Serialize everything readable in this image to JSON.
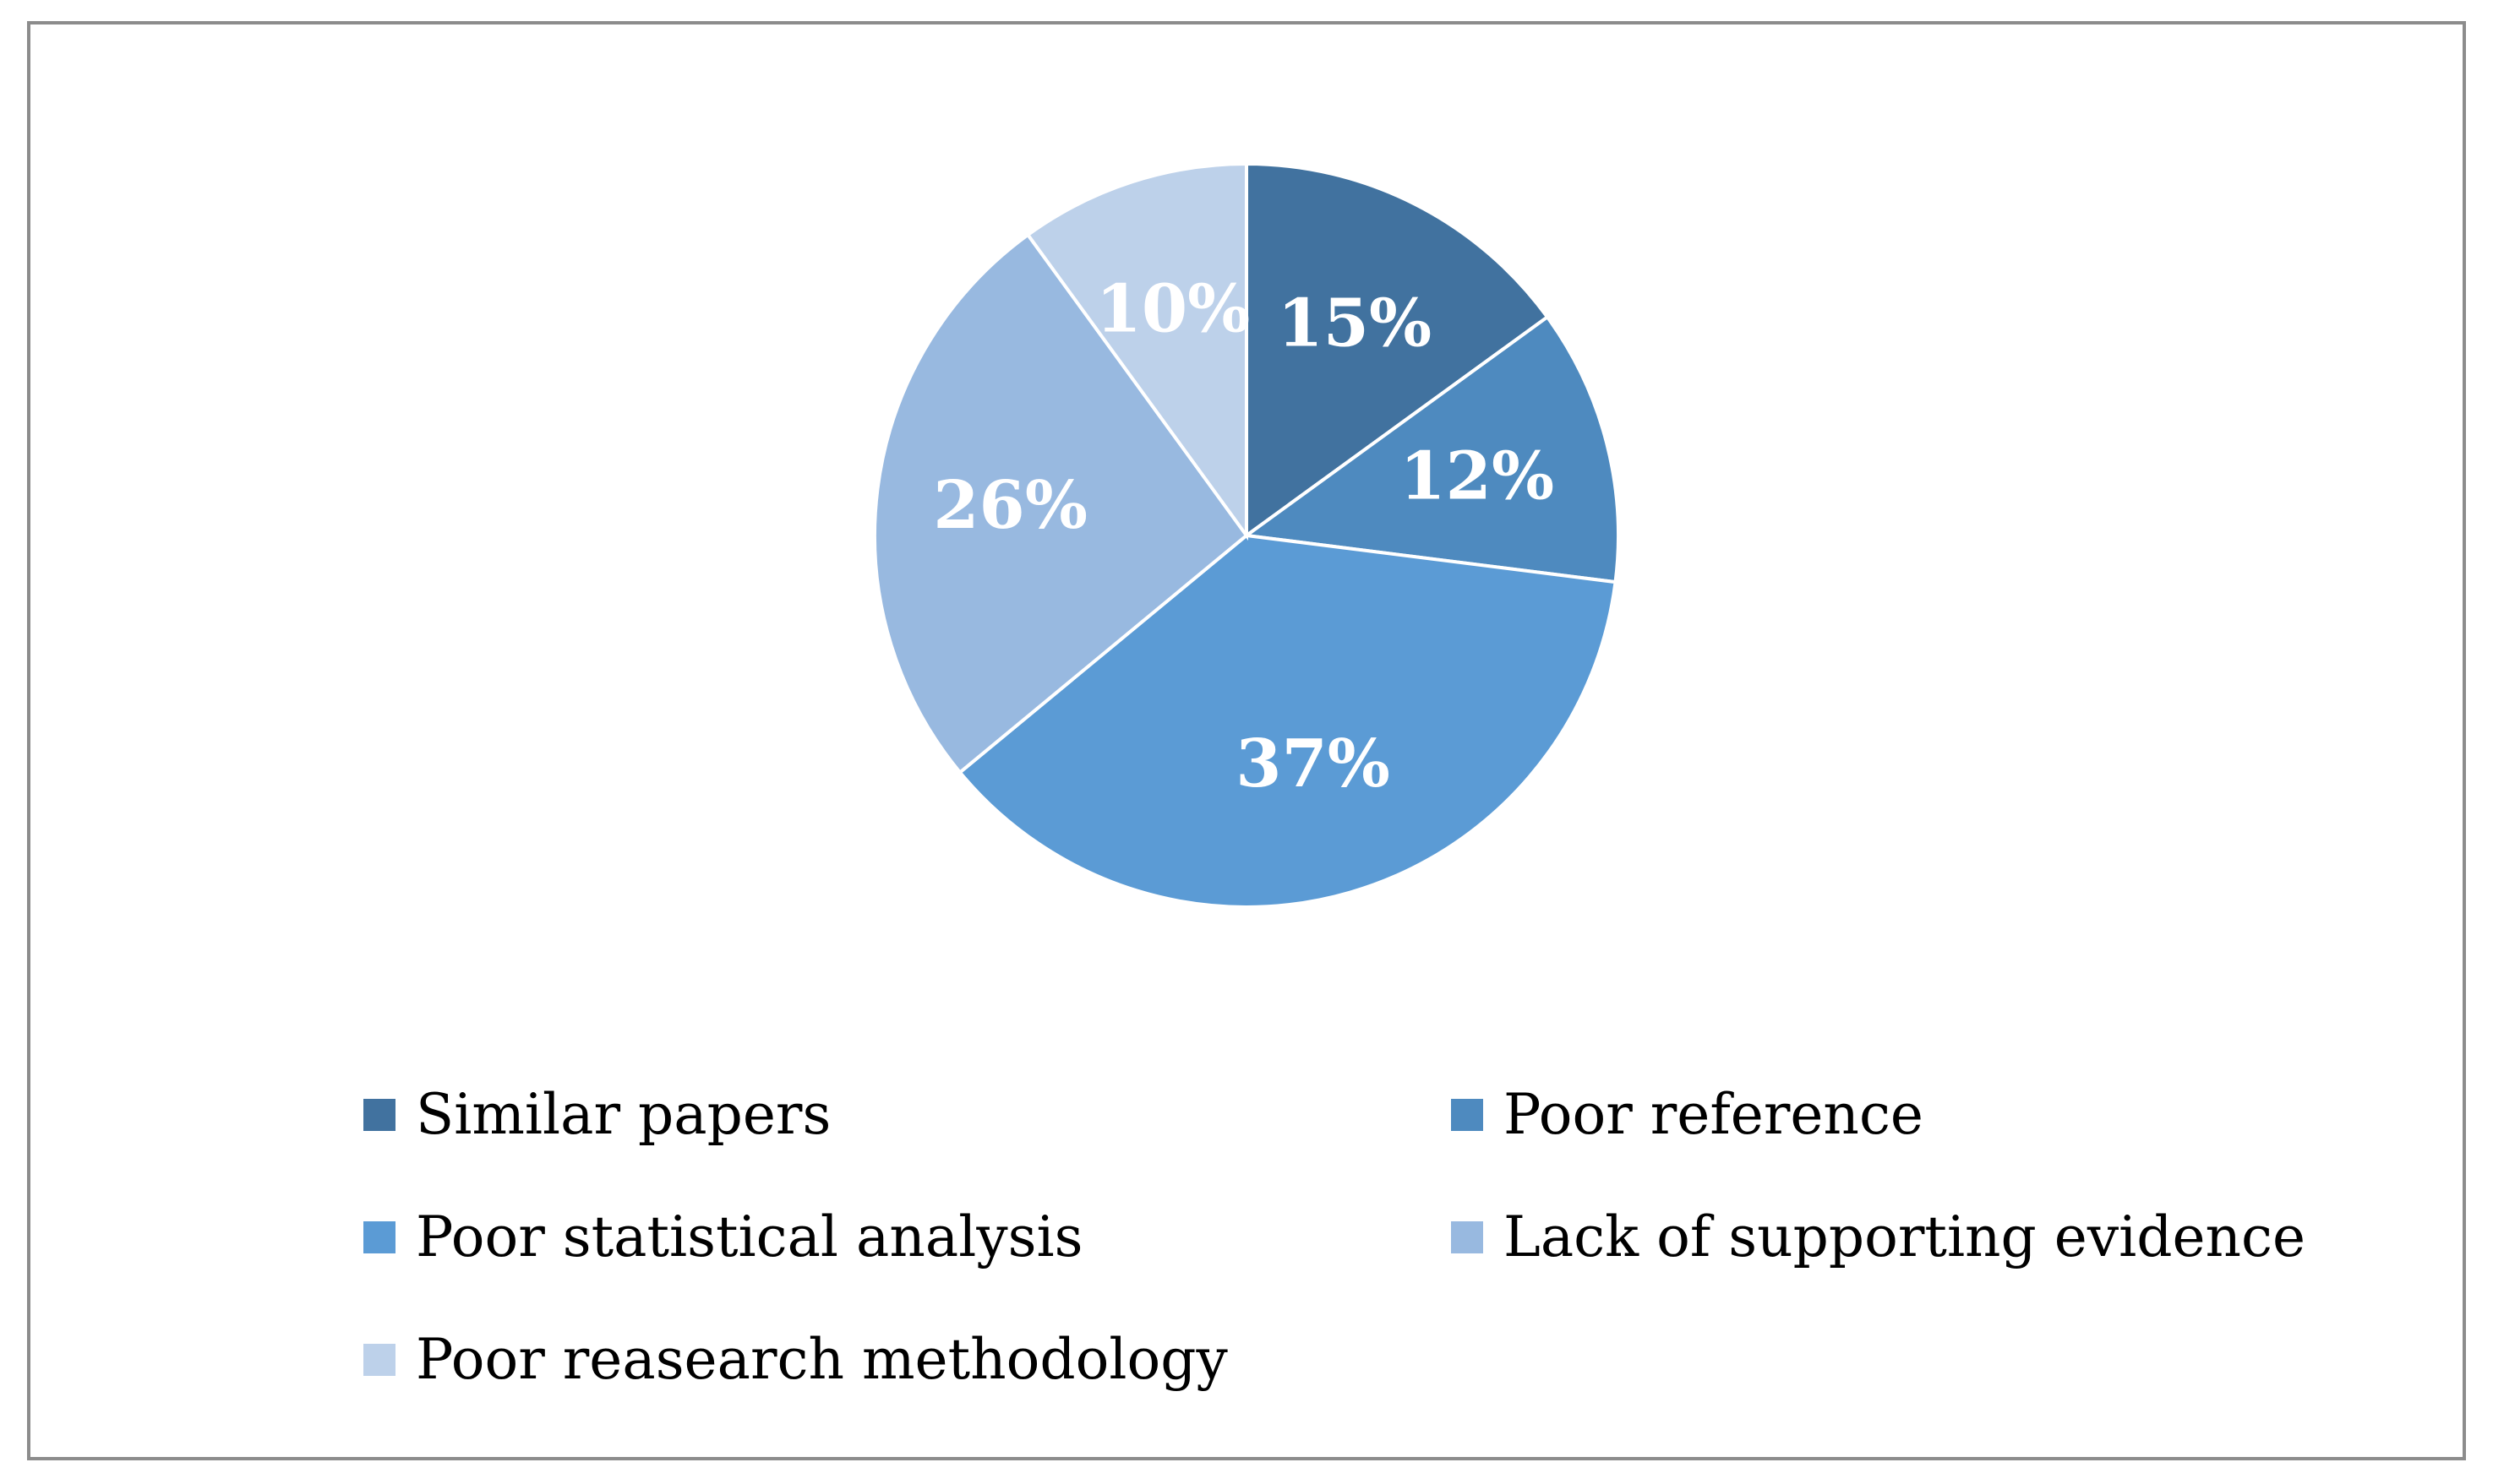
{
  "chart_data": {
    "type": "pie",
    "title": "",
    "slices": [
      {
        "name": "Similar papers",
        "value": 15,
        "label": "15%",
        "color": "#41729f"
      },
      {
        "name": "Poor reference",
        "value": 12,
        "label": "12%",
        "color": "#4e8abf"
      },
      {
        "name": "Poor statistical analysis",
        "value": 37,
        "label": "37%",
        "color": "#5b9bd5"
      },
      {
        "name": "Lack of supporting evidence",
        "value": 26,
        "label": "26%",
        "color": "#98b9e0"
      },
      {
        "name": "Poor reasearch methodology",
        "value": 10,
        "label": "10%",
        "color": "#bdd1ea"
      }
    ],
    "legend_position": "bottom",
    "slice_border_color": "#ffffff"
  }
}
